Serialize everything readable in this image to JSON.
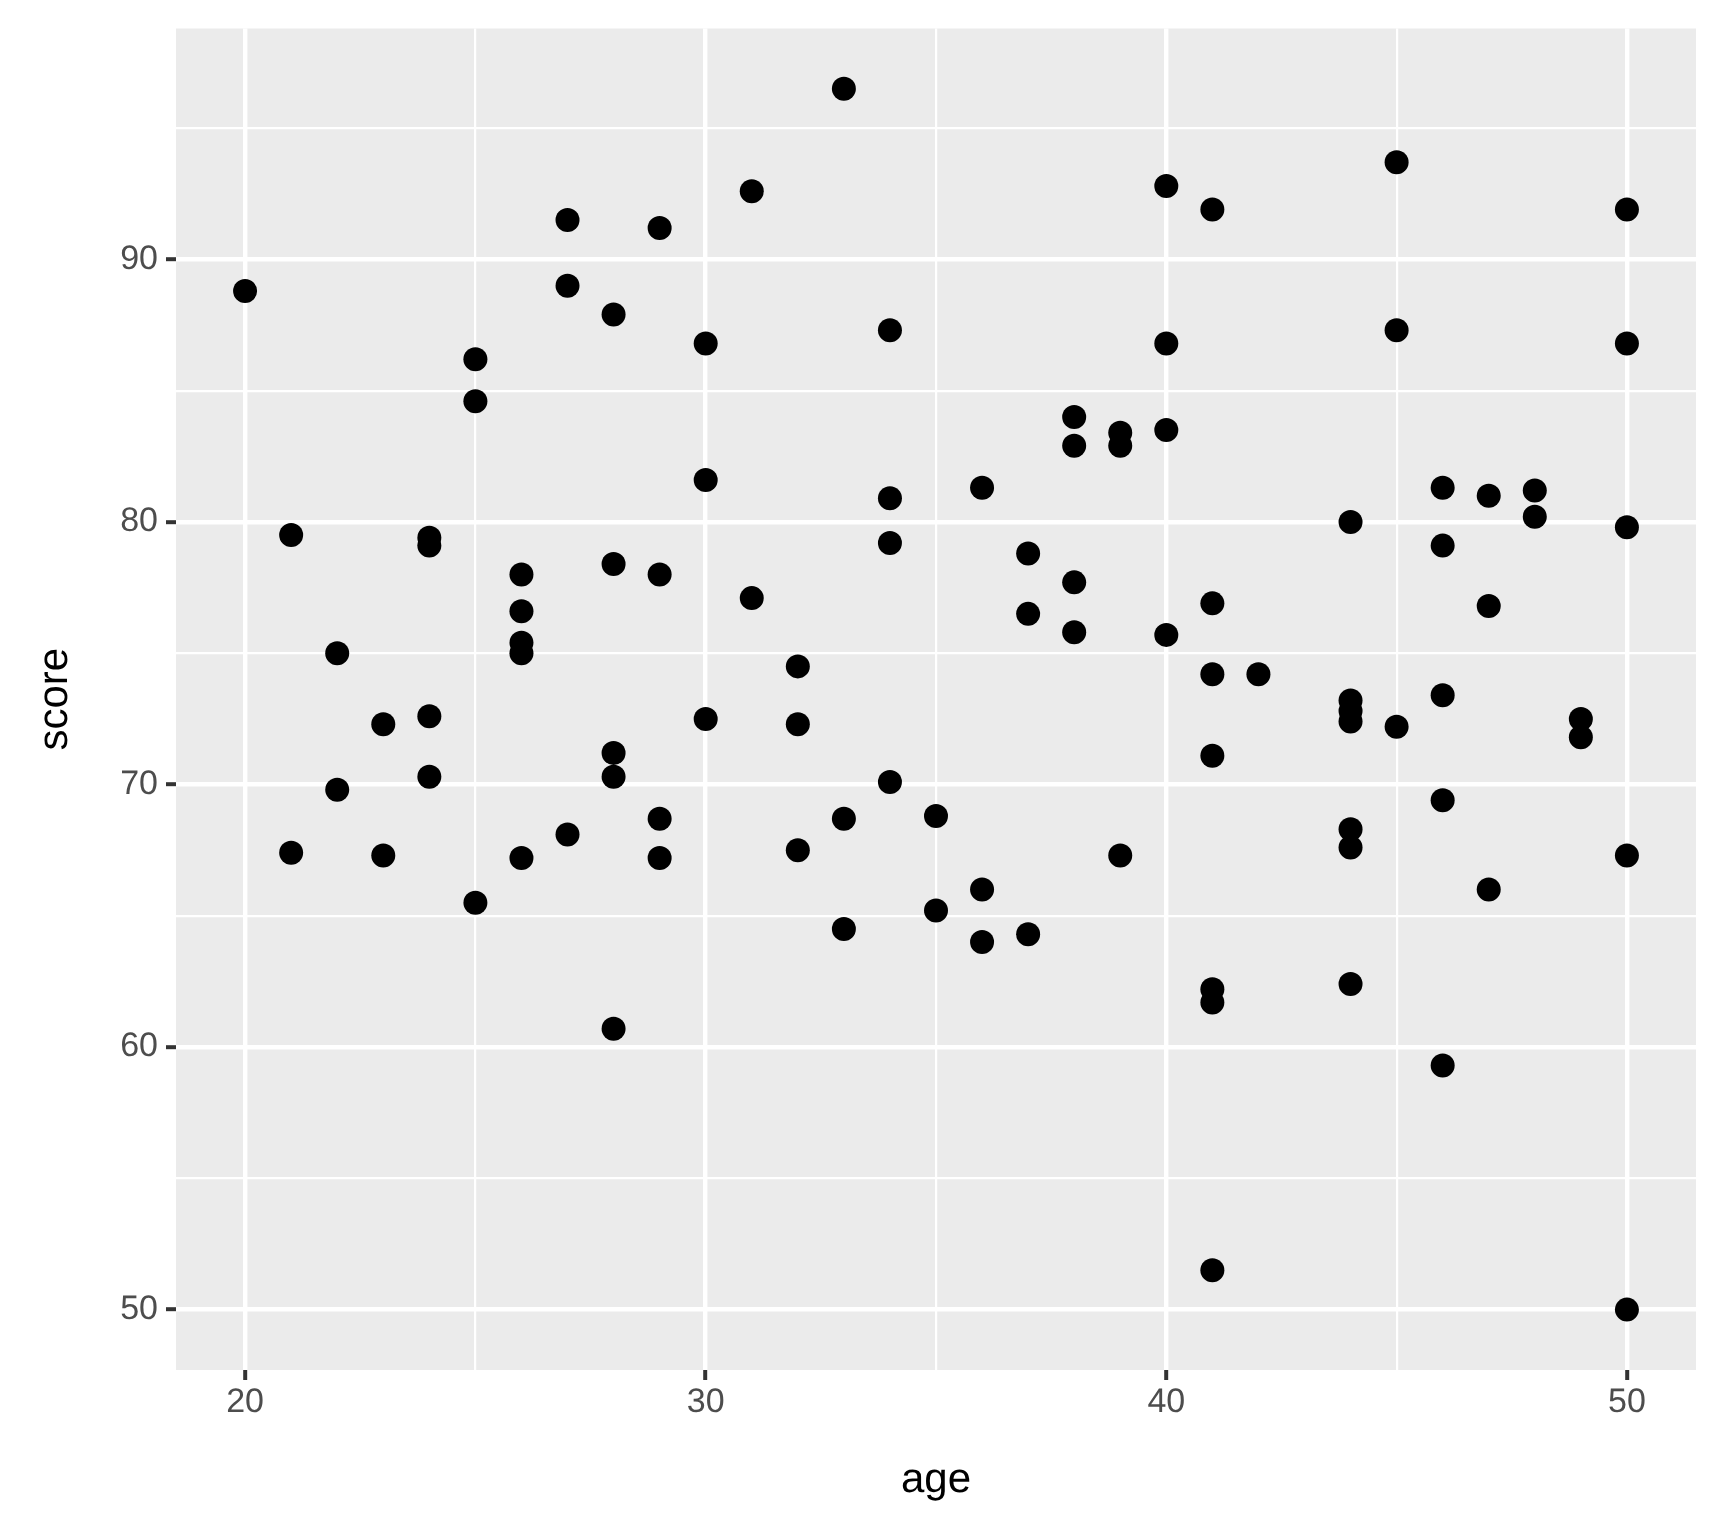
{
  "chart_data": {
    "type": "scatter",
    "xlabel": "age",
    "ylabel": "score",
    "x": [
      20,
      21,
      21,
      22,
      22,
      23,
      23,
      24,
      24,
      24,
      24,
      25,
      25,
      25,
      26,
      26,
      26,
      26,
      26,
      27,
      27,
      27,
      28,
      28,
      28,
      28,
      28,
      29,
      29,
      29,
      29,
      30,
      30,
      30,
      31,
      31,
      32,
      32,
      32,
      33,
      33,
      33,
      34,
      34,
      34,
      34,
      35,
      35,
      36,
      36,
      36,
      37,
      37,
      37,
      38,
      38,
      38,
      38,
      39,
      39,
      39,
      40,
      40,
      40,
      40,
      41,
      41,
      41,
      41,
      41,
      41,
      41,
      42,
      44,
      44,
      44,
      44,
      44,
      44,
      44,
      45,
      45,
      45,
      46,
      46,
      46,
      46,
      46,
      47,
      47,
      47,
      48,
      48,
      49,
      49,
      50,
      50,
      50,
      50,
      50
    ],
    "values": [
      88.8,
      79.5,
      67.4,
      75.0,
      69.8,
      72.3,
      67.3,
      79.4,
      79.1,
      72.6,
      70.3,
      86.2,
      84.6,
      65.5,
      78.0,
      76.6,
      75.4,
      75.0,
      67.2,
      91.5,
      89.0,
      68.1,
      87.9,
      78.4,
      71.2,
      70.3,
      60.7,
      91.2,
      78.0,
      68.7,
      67.2,
      86.8,
      81.6,
      72.5,
      92.6,
      77.1,
      74.5,
      72.3,
      67.5,
      96.5,
      68.7,
      64.5,
      87.3,
      80.9,
      79.2,
      70.1,
      68.8,
      65.2,
      81.3,
      66.0,
      64.0,
      78.8,
      76.5,
      64.3,
      84.0,
      82.9,
      77.7,
      75.8,
      83.4,
      82.9,
      67.3,
      92.8,
      86.8,
      83.5,
      75.7,
      91.9,
      76.9,
      74.2,
      71.1,
      62.2,
      61.7,
      51.5,
      74.2,
      80.0,
      73.2,
      72.8,
      72.4,
      68.3,
      67.6,
      62.4,
      93.7,
      87.3,
      72.2,
      81.3,
      79.1,
      73.4,
      69.4,
      59.3,
      81.0,
      76.8,
      66.0,
      81.2,
      80.2,
      72.5,
      71.8,
      91.9,
      86.8,
      79.8,
      67.3,
      50.0
    ],
    "color": "#000000",
    "marker": "circle",
    "grid": true,
    "xlim": [
      18.5,
      51.5
    ],
    "xticks": [
      20,
      {
        "value": 25,
        "label": null
      },
      30,
      {
        "value": 35,
        "label": null
      },
      40,
      {
        "value": 45,
        "label": null
      },
      50
    ],
    "ylim": [
      47.7,
      98.8
    ],
    "yticks": [
      50,
      {
        "value": 55,
        "label": null
      },
      60,
      {
        "value": 65,
        "label": null
      },
      70,
      {
        "value": 75,
        "label": null
      },
      80,
      {
        "value": 85,
        "label": null
      },
      90,
      {
        "value": 95,
        "label": null
      }
    ]
  }
}
